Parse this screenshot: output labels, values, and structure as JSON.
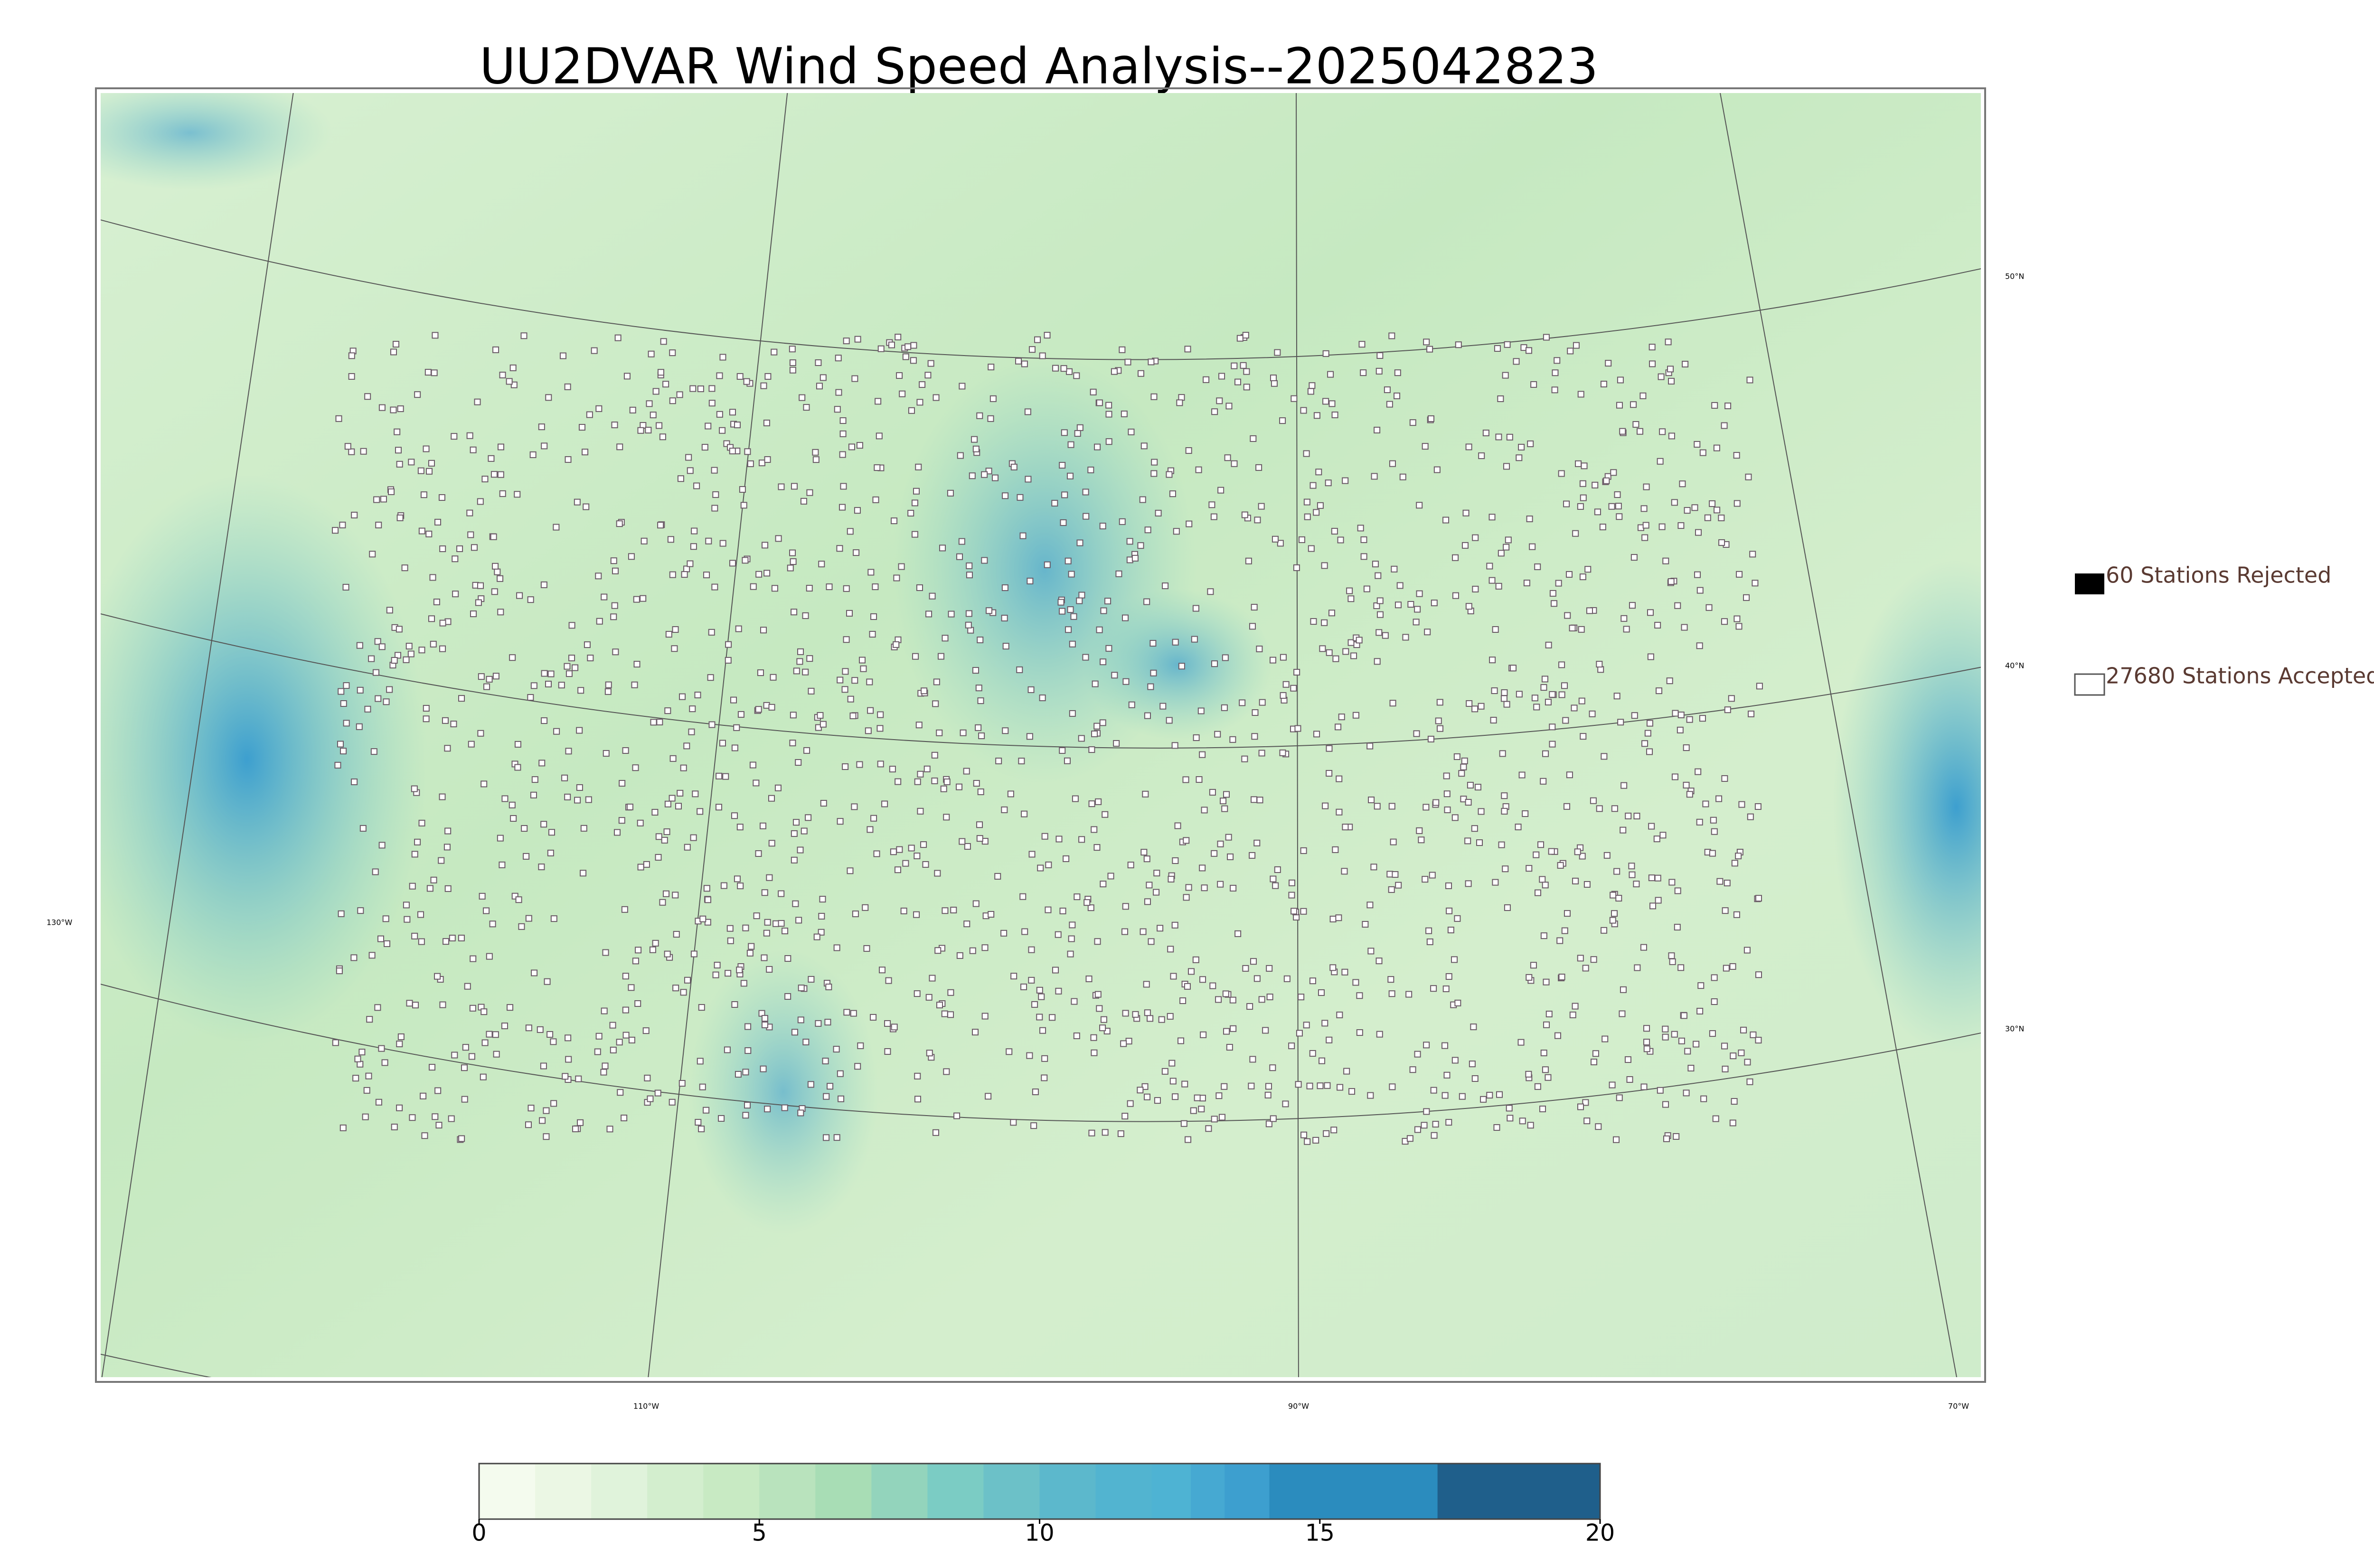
{
  "header": {
    "title": "UU2DVAR Wind Speed Analysis--2025042823"
  },
  "legend": {
    "rejected": "60 Stations Rejected",
    "accepted": "27680 Stations Accepted"
  },
  "graticule": {
    "lat_labels": [
      "50°N",
      "40°N",
      "30°N"
    ],
    "lon_labels": [
      "130°W",
      "110°W",
      "90°W",
      "70°W"
    ]
  },
  "colorbar": {
    "lim": [
      0,
      20
    ],
    "ticks": [
      0,
      5,
      10,
      15,
      20
    ],
    "segments": [
      {
        "from": 0,
        "to": 1,
        "color": "#f4fbee"
      },
      {
        "from": 1,
        "to": 2,
        "color": "#ebf7e4"
      },
      {
        "from": 2,
        "to": 3,
        "color": "#e0f3db"
      },
      {
        "from": 3,
        "to": 4,
        "color": "#d3eece"
      },
      {
        "from": 4,
        "to": 5,
        "color": "#c8eac3"
      },
      {
        "from": 5,
        "to": 6,
        "color": "#b9e3bd"
      },
      {
        "from": 6,
        "to": 7,
        "color": "#a8ddb5"
      },
      {
        "from": 7,
        "to": 8,
        "color": "#93d4bc"
      },
      {
        "from": 8,
        "to": 9,
        "color": "#7bccc4"
      },
      {
        "from": 9,
        "to": 10,
        "color": "#6cc1c8"
      },
      {
        "from": 10,
        "to": 11,
        "color": "#5cb8cc"
      },
      {
        "from": 11,
        "to": 12,
        "color": "#52b4d0"
      },
      {
        "from": 12,
        "to": 12.7,
        "color": "#4eb3d3"
      },
      {
        "from": 12.7,
        "to": 13.3,
        "color": "#46a9d2"
      },
      {
        "from": 13.3,
        "to": 14.1,
        "color": "#3d9fcf"
      },
      {
        "from": 14.1,
        "to": 17.1,
        "color": "#2b8cbe"
      },
      {
        "from": 17.1,
        "to": 20,
        "color": "#1f5f8b"
      }
    ]
  }
}
